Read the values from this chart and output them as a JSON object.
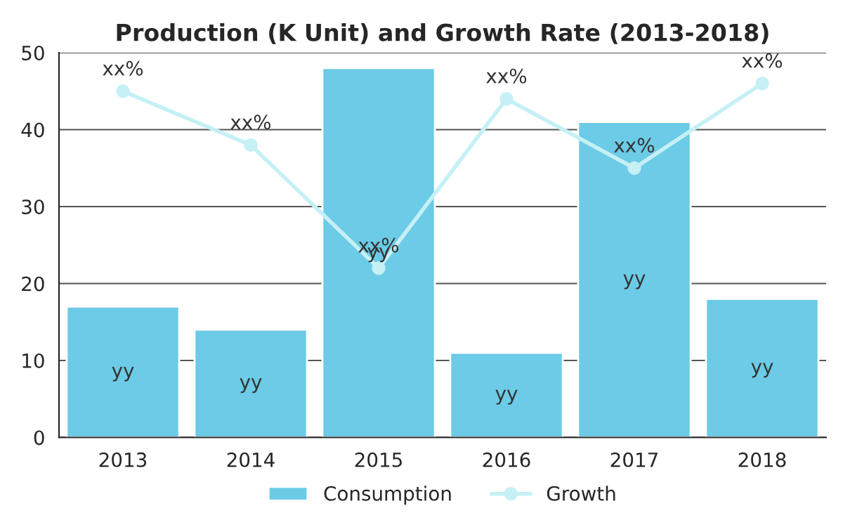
{
  "chart_data": {
    "type": "bar",
    "title": "Production (K Unit) and Growth Rate (2013-2018)",
    "categories": [
      "2013",
      "2014",
      "2015",
      "2016",
      "2017",
      "2018"
    ],
    "series": [
      {
        "name": "Consumption",
        "color": "#6ccbe6",
        "values": [
          17,
          14,
          48,
          11,
          41,
          18
        ],
        "value_labels": [
          "yy",
          "yy",
          "yy",
          "yy",
          "yy",
          "yy"
        ]
      },
      {
        "name": "Growth",
        "type": "line",
        "color": "#c5f0f5",
        "values": [
          45,
          38,
          22,
          44,
          35,
          46
        ],
        "value_labels": [
          "xx%",
          "xx%",
          "xx%",
          "xx%",
          "xx%",
          "xx%"
        ],
        "marker": "circle"
      }
    ],
    "ylim": [
      0,
      50
    ],
    "yticks": [
      0,
      10,
      20,
      30,
      40,
      50
    ],
    "grid": "y",
    "legend": "bottom"
  }
}
